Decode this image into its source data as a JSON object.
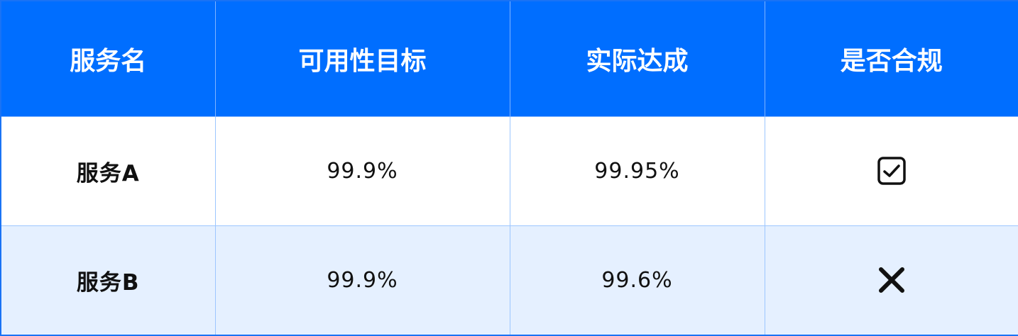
{
  "table": {
    "headers": [
      "服务名",
      "可用性目标",
      "实际达成",
      "是否合规"
    ],
    "rows": [
      {
        "service": "服务A",
        "target": "99.9%",
        "actual": "99.95%",
        "compliant": true,
        "icon": "checkbox-checked-icon"
      },
      {
        "service": "服务B",
        "target": "99.9%",
        "actual": "99.6%",
        "compliant": false,
        "icon": "x-mark-icon"
      }
    ]
  },
  "colors": {
    "header_bg": "#006EFF",
    "alt_row_bg": "#E5F0FF",
    "grid": "#9CC6FF"
  }
}
